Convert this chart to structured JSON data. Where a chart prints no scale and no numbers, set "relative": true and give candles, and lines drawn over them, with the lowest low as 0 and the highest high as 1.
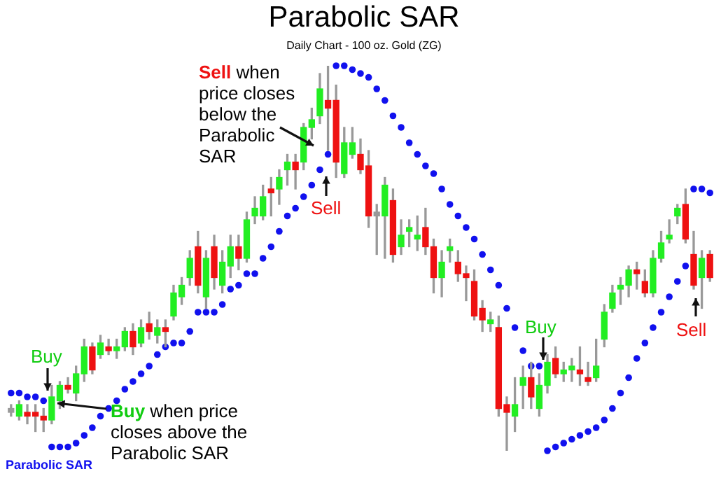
{
  "chart_data": {
    "type": "candlestick",
    "title": "Parabolic SAR",
    "subtitle": "Daily Chart - 100 oz. Gold (ZG)",
    "relative": true,
    "legend": "bottom left",
    "categories": [
      null,
      null,
      null,
      null,
      null,
      null,
      null,
      null,
      null,
      null,
      null,
      null,
      null,
      null,
      null,
      null,
      null,
      null,
      null,
      null,
      null,
      null,
      null,
      null,
      null,
      null,
      null,
      null,
      null,
      null,
      null,
      null,
      null,
      null,
      null,
      null,
      null,
      null,
      null,
      null,
      null,
      null,
      null,
      null,
      null,
      null,
      null,
      null,
      null,
      null,
      null,
      null,
      null,
      null,
      null,
      null,
      null,
      null,
      null,
      null,
      null,
      null,
      null,
      null,
      null,
      null,
      null,
      null,
      null,
      null,
      null,
      null,
      null,
      null,
      null,
      null,
      null,
      null,
      null,
      null,
      null,
      null,
      null,
      null,
      null,
      null,
      null
    ],
    "ohlc": [
      [
        0.11,
        0.12,
        0.09,
        0.1
      ],
      [
        0.09,
        0.13,
        0.08,
        0.12
      ],
      [
        0.1,
        0.12,
        0.07,
        0.09
      ],
      [
        0.1,
        0.12,
        0.05,
        0.09
      ],
      [
        0.09,
        0.11,
        0.05,
        0.08
      ],
      [
        0.08,
        0.17,
        0.07,
        0.14
      ],
      [
        0.13,
        0.18,
        0.11,
        0.17
      ],
      [
        0.17,
        0.19,
        0.15,
        0.16
      ],
      [
        0.15,
        0.22,
        0.13,
        0.2
      ],
      [
        0.2,
        0.29,
        0.18,
        0.27
      ],
      [
        0.27,
        0.28,
        0.2,
        0.21
      ],
      [
        0.25,
        0.3,
        0.24,
        0.28
      ],
      [
        0.27,
        0.29,
        0.25,
        0.26
      ],
      [
        0.26,
        0.29,
        0.24,
        0.27
      ],
      [
        0.27,
        0.32,
        0.26,
        0.31
      ],
      [
        0.31,
        0.33,
        0.25,
        0.27
      ],
      [
        0.28,
        0.34,
        0.27,
        0.32
      ],
      [
        0.33,
        0.36,
        0.29,
        0.31
      ],
      [
        0.3,
        0.34,
        0.28,
        0.32
      ],
      [
        0.32,
        0.34,
        0.27,
        0.31
      ],
      [
        0.35,
        0.43,
        0.34,
        0.41
      ],
      [
        0.4,
        0.45,
        0.38,
        0.43
      ],
      [
        0.45,
        0.52,
        0.43,
        0.5
      ],
      [
        0.53,
        0.57,
        0.41,
        0.43
      ],
      [
        0.4,
        0.52,
        0.37,
        0.5
      ],
      [
        0.53,
        0.56,
        0.42,
        0.45
      ],
      [
        0.43,
        0.52,
        0.41,
        0.49
      ],
      [
        0.48,
        0.56,
        0.45,
        0.53
      ],
      [
        0.53,
        0.56,
        0.47,
        0.5
      ],
      [
        0.5,
        0.62,
        0.49,
        0.6
      ],
      [
        0.61,
        0.66,
        0.59,
        0.63
      ],
      [
        0.61,
        0.69,
        0.6,
        0.66
      ],
      [
        0.68,
        0.71,
        0.61,
        0.67
      ],
      [
        0.68,
        0.73,
        0.64,
        0.71
      ],
      [
        0.73,
        0.77,
        0.69,
        0.75
      ],
      [
        0.75,
        0.77,
        0.68,
        0.73
      ],
      [
        0.75,
        0.85,
        0.73,
        0.84
      ],
      [
        0.84,
        0.89,
        0.81,
        0.86
      ],
      [
        0.87,
        0.98,
        0.85,
        0.94
      ],
      [
        0.91,
        1.0,
        0.78,
        0.89
      ],
      [
        0.91,
        0.95,
        0.71,
        0.75
      ],
      [
        0.72,
        0.84,
        0.71,
        0.8
      ],
      [
        0.77,
        0.84,
        0.76,
        0.8
      ],
      [
        0.77,
        0.81,
        0.72,
        0.73
      ],
      [
        0.74,
        0.78,
        0.58,
        0.61
      ],
      [
        0.62,
        0.64,
        0.51,
        0.61
      ],
      [
        0.61,
        0.71,
        0.5,
        0.69
      ],
      [
        0.65,
        0.68,
        0.49,
        0.51
      ],
      [
        0.53,
        0.6,
        0.51,
        0.56
      ],
      [
        0.57,
        0.6,
        0.53,
        0.58
      ],
      [
        0.55,
        0.61,
        0.52,
        0.56
      ],
      [
        0.58,
        0.63,
        0.51,
        0.53
      ],
      [
        0.53,
        0.55,
        0.41,
        0.45
      ],
      [
        0.45,
        0.52,
        0.4,
        0.49
      ],
      [
        0.52,
        0.55,
        0.49,
        0.53
      ],
      [
        0.49,
        0.52,
        0.44,
        0.46
      ],
      [
        0.46,
        0.48,
        0.39,
        0.45
      ],
      [
        0.44,
        0.47,
        0.34,
        0.35
      ],
      [
        0.37,
        0.39,
        0.31,
        0.34
      ],
      [
        0.33,
        0.36,
        0.31,
        0.34
      ],
      [
        0.32,
        0.35,
        0.09,
        0.11
      ],
      [
        0.12,
        0.14,
        0.0,
        0.1
      ],
      [
        0.09,
        0.19,
        0.05,
        0.12
      ],
      [
        0.17,
        0.22,
        0.11,
        0.19
      ],
      [
        0.19,
        0.23,
        0.11,
        0.14
      ],
      [
        0.11,
        0.2,
        0.09,
        0.17
      ],
      [
        0.17,
        0.25,
        0.15,
        0.23
      ],
      [
        0.24,
        0.27,
        0.19,
        0.2
      ],
      [
        0.2,
        0.23,
        0.18,
        0.21
      ],
      [
        0.21,
        0.24,
        0.18,
        0.22
      ],
      [
        0.21,
        0.27,
        0.17,
        0.2
      ],
      [
        0.19,
        0.23,
        0.17,
        0.18
      ],
      [
        0.19,
        0.29,
        0.18,
        0.22
      ],
      [
        0.29,
        0.38,
        0.27,
        0.36
      ],
      [
        0.37,
        0.43,
        0.36,
        0.41
      ],
      [
        0.42,
        0.45,
        0.38,
        0.43
      ],
      [
        0.43,
        0.48,
        0.4,
        0.47
      ],
      [
        0.47,
        0.49,
        0.42,
        0.46
      ],
      [
        0.44,
        0.47,
        0.4,
        0.41
      ],
      [
        0.41,
        0.52,
        0.4,
        0.5
      ],
      [
        0.5,
        0.57,
        0.49,
        0.54
      ],
      [
        0.55,
        0.6,
        0.54,
        0.56
      ],
      [
        0.61,
        0.64,
        0.59,
        0.63
      ],
      [
        0.64,
        0.68,
        0.54,
        0.55
      ],
      [
        0.51,
        0.57,
        0.42,
        0.43
      ],
      [
        0.45,
        0.52,
        0.37,
        0.5
      ],
      [
        0.51,
        0.52,
        0.44,
        0.45
      ]
    ],
    "colors": [
      "#999999",
      "#22ee22",
      "#ee1111",
      "#ee1111",
      "#ee1111",
      "#22ee22",
      "#22ee22",
      "#ee1111",
      "#22ee22",
      "#22ee22",
      "#ee1111",
      "#22ee22",
      "#ee1111",
      "#22ee22",
      "#22ee22",
      "#ee1111",
      "#22ee22",
      "#ee1111",
      "#22ee22",
      "#ee1111",
      "#22ee22",
      "#22ee22",
      "#22ee22",
      "#ee1111",
      "#22ee22",
      "#ee1111",
      "#22ee22",
      "#22ee22",
      "#ee1111",
      "#22ee22",
      "#22ee22",
      "#22ee22",
      "#ee1111",
      "#22ee22",
      "#22ee22",
      "#ee1111",
      "#22ee22",
      "#22ee22",
      "#22ee22",
      "#ee1111",
      "#ee1111",
      "#22ee22",
      "#22ee22",
      "#ee1111",
      "#ee1111",
      "#999999",
      "#22ee22",
      "#ee1111",
      "#22ee22",
      "#22ee22",
      "#22ee22",
      "#ee1111",
      "#ee1111",
      "#22ee22",
      "#22ee22",
      "#ee1111",
      "#ee1111",
      "#ee1111",
      "#ee1111",
      "#22ee22",
      "#ee1111",
      "#ee1111",
      "#22ee22",
      "#22ee22",
      "#ee1111",
      "#22ee22",
      "#22ee22",
      "#ee1111",
      "#22ee22",
      "#22ee22",
      "#ee1111",
      "#ee1111",
      "#22ee22",
      "#22ee22",
      "#22ee22",
      "#22ee22",
      "#22ee22",
      "#ee1111",
      "#ee1111",
      "#22ee22",
      "#22ee22",
      "#22ee22",
      "#22ee22",
      "#ee1111",
      "#ee1111",
      "#22ee22",
      "#ee1111"
    ],
    "series": [
      {
        "type": "scatter",
        "name": "Parabolic SAR",
        "color": "#1111ee",
        "values": [
          0.15,
          0.15,
          0.14,
          0.14,
          0.13,
          0.01,
          0.01,
          0.01,
          0.02,
          0.04,
          0.06,
          0.09,
          0.11,
          0.13,
          0.16,
          0.18,
          0.2,
          0.22,
          0.25,
          0.27,
          0.28,
          0.28,
          0.31,
          0.36,
          0.36,
          0.36,
          0.38,
          0.42,
          0.43,
          0.46,
          0.46,
          0.5,
          0.53,
          0.57,
          0.61,
          0.63,
          0.66,
          0.69,
          0.73,
          0.77,
          1.0,
          1.0,
          0.99,
          0.98,
          0.97,
          0.94,
          0.91,
          0.87,
          0.84,
          0.8,
          0.77,
          0.74,
          0.72,
          0.68,
          0.64,
          0.61,
          0.58,
          0.55,
          0.51,
          0.47,
          0.43,
          0.37,
          0.32,
          0.26,
          0.22,
          0.22,
          0.0,
          0.01,
          0.02,
          0.03,
          0.04,
          0.05,
          0.06,
          0.08,
          0.11,
          0.15,
          0.19,
          0.24,
          0.28,
          0.32,
          0.36,
          0.4,
          0.44,
          0.48,
          0.68,
          0.68,
          0.67
        ]
      }
    ],
    "annotations": [
      "Sell when price closes below the Parabolic SAR",
      "Sell",
      "Buy",
      "Buy when price closes above the Parabolic SAR",
      "Buy",
      "Sell"
    ]
  }
}
